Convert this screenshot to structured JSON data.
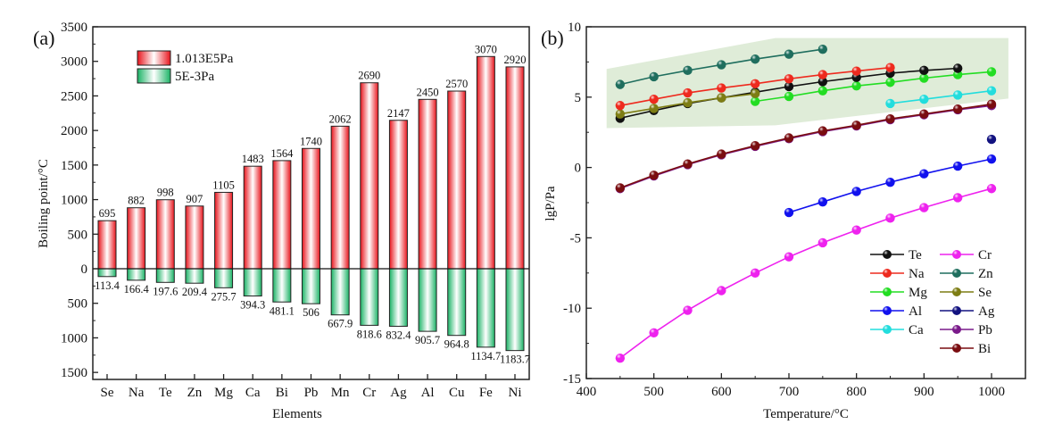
{
  "chart_data": [
    {
      "panel": "(a)",
      "type": "bar",
      "title": "",
      "xlabel": "Elements",
      "ylabel": "Boiling point/°C",
      "categories": [
        "Se",
        "Na",
        "Te",
        "Zn",
        "Mg",
        "Ca",
        "Bi",
        "Pb",
        "Mn",
        "Cr",
        "Ag",
        "Al",
        "Cu",
        "Fe",
        "Ni"
      ],
      "series": [
        {
          "name": "1.013E5Pa",
          "color": "#e8141c",
          "direction": "up",
          "values": [
            695,
            882,
            998,
            907,
            1105,
            1483,
            1564,
            1740,
            2062,
            2690,
            2147,
            2450,
            2570,
            3070,
            2920
          ],
          "labels": [
            "695",
            "882",
            "998",
            "907",
            "1105",
            "1483",
            "1564",
            "1740",
            "2062",
            "2690",
            "2147",
            "2450",
            "2570",
            "3070",
            "2920"
          ]
        },
        {
          "name": "5E-3Pa",
          "color": "#1bb366",
          "direction": "down",
          "values": [
            113.4,
            166.4,
            197.6,
            209.4,
            275.7,
            394.3,
            481.1,
            506,
            667.9,
            818.6,
            832.4,
            905.7,
            964.8,
            1134.7,
            1183.7
          ],
          "labels": [
            "113.4",
            "166.4",
            "197.6",
            "209.4",
            "275.7",
            "394.3",
            "481.1",
            "506",
            "667.9",
            "818.6",
            "832.4",
            "905.7",
            "964.8",
            "1134.7",
            "1183.7"
          ]
        }
      ],
      "yticks_up": [
        0,
        500,
        1000,
        1500,
        2000,
        2500,
        3000,
        3500
      ],
      "yticks_down": [
        500,
        1000,
        1500
      ],
      "ytick_labels": [
        "0",
        "500",
        "1000",
        "1500",
        "2000",
        "2500",
        "3000",
        "3500"
      ],
      "ytick_labels_down": [
        "500",
        "1000",
        "1500"
      ],
      "ylim": [
        -1600,
        3500
      ],
      "legend": "top-left",
      "grid": false
    },
    {
      "panel": "(b)",
      "type": "line",
      "title": "",
      "xlabel": "Temperature/°C",
      "ylabel": "lgP/Pa",
      "xlim": [
        400,
        1050
      ],
      "ylim": [
        -15,
        10
      ],
      "xticks": [
        400,
        500,
        600,
        700,
        800,
        900,
        1000
      ],
      "xtick_labels": [
        "400",
        "500",
        "600",
        "700",
        "800",
        "900",
        "1000"
      ],
      "yticks": [
        -15,
        -10,
        -5,
        0,
        5,
        10
      ],
      "ytick_labels": [
        "-15",
        "-10",
        "-5",
        "0",
        "5",
        "10"
      ],
      "legend": "bottom-right",
      "grid": false,
      "shaded_region": {
        "color": "#dfecd8",
        "points": [
          [
            430,
            7.0
          ],
          [
            680,
            9.2
          ],
          [
            1025,
            9.2
          ],
          [
            1025,
            4.9
          ],
          [
            680,
            3.0
          ],
          [
            430,
            2.8
          ]
        ]
      },
      "series": [
        {
          "name": "Te",
          "color": "#111111",
          "x": [
            450,
            500,
            550,
            600,
            650,
            700,
            750,
            800,
            850,
            900,
            950
          ],
          "y": [
            3.5,
            4.05,
            4.55,
            4.95,
            5.35,
            5.75,
            6.1,
            6.4,
            6.7,
            6.9,
            7.05
          ]
        },
        {
          "name": "Na",
          "color": "#ee2a1e",
          "x": [
            450,
            500,
            550,
            600,
            650,
            700,
            750,
            800,
            850
          ],
          "y": [
            4.4,
            4.85,
            5.3,
            5.65,
            5.95,
            6.3,
            6.6,
            6.85,
            7.1
          ]
        },
        {
          "name": "Mg",
          "color": "#22dd22",
          "x": [
            650,
            700,
            750,
            800,
            850,
            900,
            950,
            1000
          ],
          "y": [
            4.7,
            5.05,
            5.45,
            5.8,
            6.05,
            6.35,
            6.6,
            6.8
          ]
        },
        {
          "name": "Al",
          "color": "#1111ee",
          "x": [
            700,
            750,
            800,
            850,
            900,
            950,
            1000
          ],
          "y": [
            -3.2,
            -2.45,
            -1.7,
            -1.05,
            -0.45,
            0.1,
            0.6
          ]
        },
        {
          "name": "Ca",
          "color": "#22dddd",
          "x": [
            850,
            900,
            950,
            1000
          ],
          "y": [
            4.55,
            4.85,
            5.15,
            5.45
          ]
        },
        {
          "name": "Cr",
          "color": "#ee22ee",
          "x": [
            450,
            500,
            550,
            600,
            650,
            700,
            750,
            800,
            850,
            900,
            950,
            1000
          ],
          "y": [
            -13.55,
            -11.75,
            -10.15,
            -8.75,
            -7.5,
            -6.35,
            -5.35,
            -4.45,
            -3.6,
            -2.85,
            -2.15,
            -1.5
          ]
        },
        {
          "name": "Zn",
          "color": "#1f6e5e",
          "x": [
            450,
            500,
            550,
            600,
            650,
            700,
            750
          ],
          "y": [
            5.9,
            6.45,
            6.9,
            7.3,
            7.7,
            8.05,
            8.4
          ]
        },
        {
          "name": "Se",
          "color": "#7d7d14",
          "x": [
            450,
            500,
            550,
            600,
            650
          ],
          "y": [
            3.8,
            4.2,
            4.6,
            4.95,
            5.25
          ]
        },
        {
          "name": "Ag",
          "color": "#121280",
          "x": [
            1000
          ],
          "y": [
            2.0
          ]
        },
        {
          "name": "Pb",
          "color": "#7a1a8a",
          "x": [
            450,
            500,
            550,
            600,
            650,
            700,
            750,
            800,
            850,
            900,
            950,
            1000
          ],
          "y": [
            -1.5,
            -0.6,
            0.2,
            0.9,
            1.5,
            2.05,
            2.55,
            2.95,
            3.4,
            3.75,
            4.1,
            4.4
          ]
        },
        {
          "name": "Bi",
          "color": "#7a0d10",
          "x": [
            450,
            500,
            550,
            600,
            650,
            700,
            750,
            800,
            850,
            900,
            950,
            1000
          ],
          "y": [
            -1.45,
            -0.55,
            0.25,
            0.95,
            1.55,
            2.1,
            2.6,
            3.0,
            3.45,
            3.8,
            4.15,
            4.5
          ]
        }
      ],
      "legend_columns": [
        [
          "Te",
          "Na",
          "Mg",
          "Al",
          "Ca"
        ],
        [
          "Cr",
          "Zn",
          "Se",
          "Ag",
          "Pb",
          "Bi"
        ]
      ]
    }
  ]
}
